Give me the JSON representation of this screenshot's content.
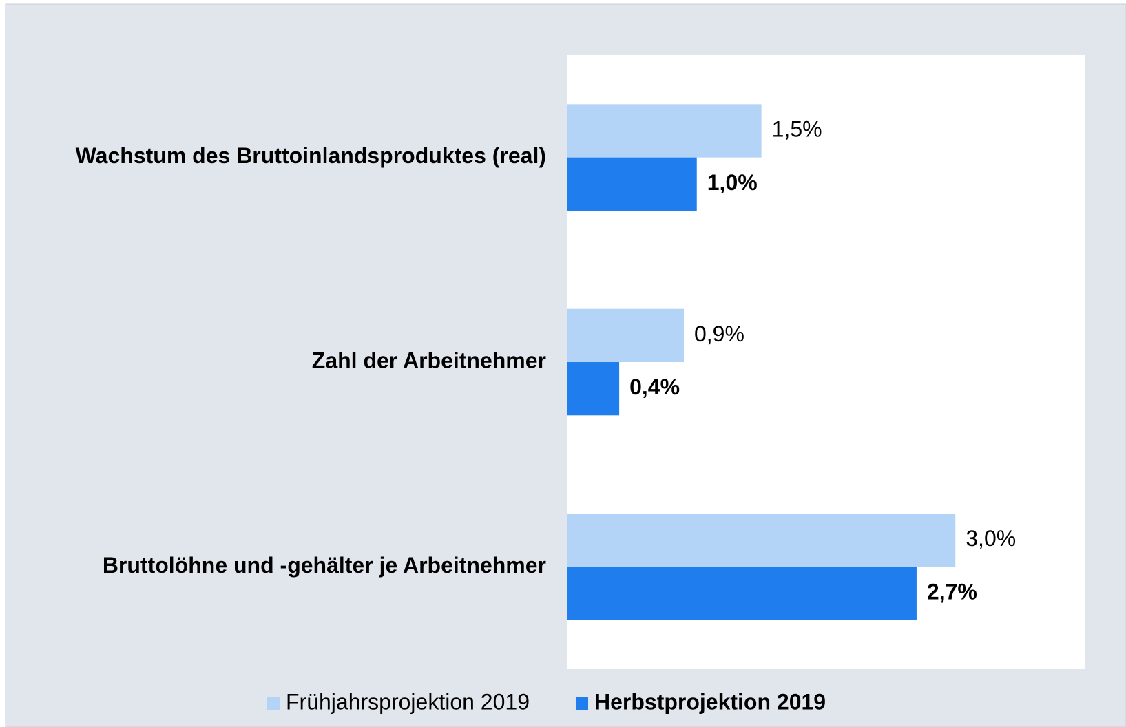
{
  "chart_data": {
    "type": "hbar",
    "categories": [
      "Wachstum des Bruttoinlandsproduktes (real)",
      "Zahl der Arbeitnehmer",
      "Bruttolöhne und -gehälter je Arbeitnehmer"
    ],
    "series": [
      {
        "name": "Frühjahrsprojektion 2019",
        "color": "#b3d3f7",
        "values": [
          1.5,
          0.9,
          3.0
        ],
        "value_labels": [
          "1,5%",
          "0,9%",
          "3,0%"
        ]
      },
      {
        "name": "Herbstprojektion 2019",
        "color": "#1f7ded",
        "values": [
          1.0,
          0.4,
          2.7
        ],
        "value_labels": [
          "1,0%",
          "0,4%",
          "2,7%"
        ]
      }
    ],
    "xlim": [
      0,
      4
    ],
    "legend": "bottom"
  }
}
